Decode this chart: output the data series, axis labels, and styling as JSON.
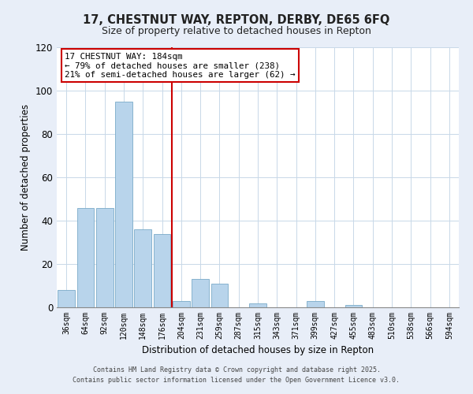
{
  "title": "17, CHESTNUT WAY, REPTON, DERBY, DE65 6FQ",
  "subtitle": "Size of property relative to detached houses in Repton",
  "xlabel": "Distribution of detached houses by size in Repton",
  "ylabel": "Number of detached properties",
  "categories": [
    "36sqm",
    "64sqm",
    "92sqm",
    "120sqm",
    "148sqm",
    "176sqm",
    "204sqm",
    "231sqm",
    "259sqm",
    "287sqm",
    "315sqm",
    "343sqm",
    "371sqm",
    "399sqm",
    "427sqm",
    "455sqm",
    "483sqm",
    "510sqm",
    "538sqm",
    "566sqm",
    "594sqm"
  ],
  "values": [
    8,
    46,
    46,
    95,
    36,
    34,
    3,
    13,
    11,
    0,
    2,
    0,
    0,
    3,
    0,
    1,
    0,
    0,
    0,
    0,
    0
  ],
  "bar_color": "#b8d4eb",
  "bar_edge_color": "#7aaac8",
  "vline_color": "#cc0000",
  "ylim": [
    0,
    120
  ],
  "yticks": [
    0,
    20,
    40,
    60,
    80,
    100,
    120
  ],
  "annotation_title": "17 CHESTNUT WAY: 184sqm",
  "annotation_line1": "← 79% of detached houses are smaller (238)",
  "annotation_line2": "21% of semi-detached houses are larger (62) →",
  "footnote1": "Contains HM Land Registry data © Crown copyright and database right 2025.",
  "footnote2": "Contains public sector information licensed under the Open Government Licence v3.0.",
  "bg_color": "#e8eef8",
  "plot_bg_color": "#ffffff",
  "grid_color": "#c8d8e8"
}
